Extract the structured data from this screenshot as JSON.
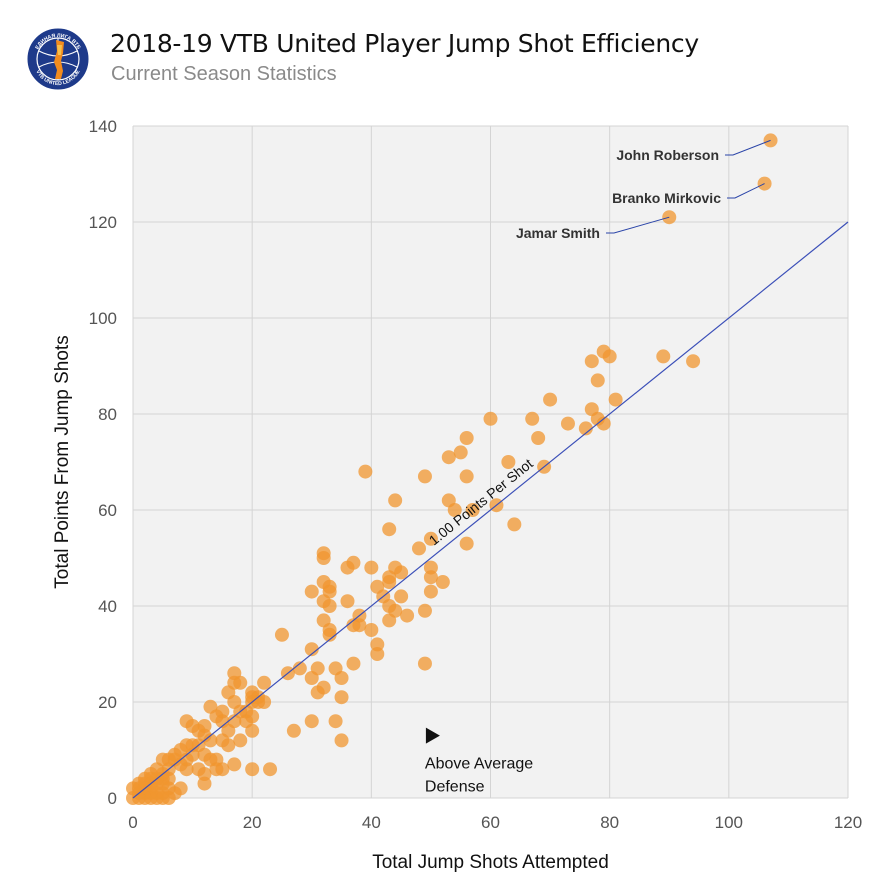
{
  "header": {
    "title": "2018-19 VTB United Player Jump Shot Efficiency",
    "subtitle": "Current Season Statistics",
    "logo": {
      "name": "vtb-united-league-logo",
      "top_text": "ЕДИНАЯ ЛИГА ВТБ",
      "bottom_text": "VTB UNITED LEAGUE",
      "colors": {
        "ring": "#1e3a8a",
        "trophy": "#f28c1e"
      }
    }
  },
  "colors": {
    "point": "#f0962f",
    "reference_line": "#3b4fb8",
    "plot_background": "#f2f2f2",
    "grid": "#d4d4d4",
    "callout_line": "#2a44a8"
  },
  "chart_data": {
    "type": "scatter",
    "title": "2018-19 VTB United Player Jump Shot Efficiency",
    "subtitle": "Current Season Statistics",
    "xlabel": "Total Jump Shots Attempted",
    "ylabel": "Total Points From Jump Shots",
    "xlim": [
      0,
      120
    ],
    "ylim": [
      0,
      140
    ],
    "xticks": [
      0,
      20,
      40,
      60,
      80,
      100,
      120
    ],
    "yticks": [
      0,
      20,
      40,
      60,
      80,
      100,
      120,
      140
    ],
    "xtick_labels": [
      "0",
      "20",
      "40",
      "60",
      "80",
      "100",
      "120"
    ],
    "ytick_labels": [
      "0",
      "20",
      "40",
      "60",
      "80",
      "100",
      "120",
      "140"
    ],
    "grid": true,
    "reference_line": {
      "label": "1.00 Points Per Shot",
      "slope": 1.0,
      "from": [
        0,
        0
      ],
      "to": [
        120,
        120
      ]
    },
    "annotation": {
      "line1": "Above Average",
      "line2": "Defense",
      "marker": "right-triangle",
      "x": 50,
      "y": 13
    },
    "callouts": [
      {
        "name": "John Roberson",
        "x": 107,
        "y": 137
      },
      {
        "name": "Branko Mirkovic",
        "x": 106,
        "y": 128
      },
      {
        "name": "Jamar Smith",
        "x": 90,
        "y": 121
      }
    ],
    "points": [
      [
        107,
        137
      ],
      [
        106,
        128
      ],
      [
        90,
        121
      ],
      [
        79,
        93
      ],
      [
        77,
        91
      ],
      [
        80,
        92
      ],
      [
        89,
        92
      ],
      [
        94,
        91
      ],
      [
        78,
        87
      ],
      [
        70,
        83
      ],
      [
        81,
        83
      ],
      [
        77,
        81
      ],
      [
        60,
        79
      ],
      [
        67,
        79
      ],
      [
        73,
        78
      ],
      [
        79,
        78
      ],
      [
        76,
        77
      ],
      [
        78,
        79
      ],
      [
        56,
        75
      ],
      [
        68,
        75
      ],
      [
        53,
        71
      ],
      [
        55,
        72
      ],
      [
        63,
        70
      ],
      [
        56,
        67
      ],
      [
        49,
        67
      ],
      [
        69,
        69
      ],
      [
        39,
        68
      ],
      [
        44,
        62
      ],
      [
        53,
        62
      ],
      [
        61,
        61
      ],
      [
        54,
        60
      ],
      [
        57,
        60
      ],
      [
        64,
        57
      ],
      [
        43,
        56
      ],
      [
        56,
        53
      ],
      [
        48,
        52
      ],
      [
        50,
        54
      ],
      [
        32,
        51
      ],
      [
        32,
        50
      ],
      [
        30,
        43
      ],
      [
        36,
        48
      ],
      [
        37,
        49
      ],
      [
        40,
        48
      ],
      [
        44,
        48
      ],
      [
        43,
        46
      ],
      [
        45,
        47
      ],
      [
        50,
        48
      ],
      [
        50,
        46
      ],
      [
        52,
        45
      ],
      [
        32,
        45
      ],
      [
        33,
        44
      ],
      [
        33,
        43
      ],
      [
        41,
        44
      ],
      [
        43,
        45
      ],
      [
        42,
        42
      ],
      [
        45,
        42
      ],
      [
        36,
        41
      ],
      [
        32,
        41
      ],
      [
        33,
        40
      ],
      [
        43,
        40
      ],
      [
        44,
        39
      ],
      [
        49,
        39
      ],
      [
        46,
        38
      ],
      [
        38,
        38
      ],
      [
        37,
        36
      ],
      [
        32,
        37
      ],
      [
        33,
        35
      ],
      [
        38,
        36
      ],
      [
        33,
        34
      ],
      [
        40,
        35
      ],
      [
        43,
        37
      ],
      [
        41,
        32
      ],
      [
        41,
        30
      ],
      [
        30,
        31
      ],
      [
        50,
        43
      ],
      [
        25,
        34
      ],
      [
        34,
        27
      ],
      [
        37,
        28
      ],
      [
        31,
        27
      ],
      [
        30,
        25
      ],
      [
        26,
        26
      ],
      [
        28,
        27
      ],
      [
        32,
        23
      ],
      [
        31,
        22
      ],
      [
        35,
        25
      ],
      [
        35,
        21
      ],
      [
        34,
        16
      ],
      [
        30,
        16
      ],
      [
        27,
        14
      ],
      [
        35,
        12
      ],
      [
        49,
        28
      ],
      [
        17,
        26
      ],
      [
        17,
        24
      ],
      [
        18,
        24
      ],
      [
        20,
        22
      ],
      [
        20,
        21
      ],
      [
        21,
        21
      ],
      [
        22,
        24
      ],
      [
        20,
        20
      ],
      [
        21,
        20
      ],
      [
        22,
        20
      ],
      [
        16,
        22
      ],
      [
        17,
        20
      ],
      [
        18,
        18
      ],
      [
        19,
        18
      ],
      [
        15,
        18
      ],
      [
        13,
        19
      ],
      [
        14,
        17
      ],
      [
        15,
        16
      ],
      [
        17,
        16
      ],
      [
        19,
        16
      ],
      [
        20,
        17
      ],
      [
        12,
        15
      ],
      [
        11,
        14
      ],
      [
        10,
        15
      ],
      [
        9,
        16
      ],
      [
        16,
        14
      ],
      [
        20,
        14
      ],
      [
        12,
        13
      ],
      [
        13,
        12
      ],
      [
        15,
        12
      ],
      [
        16,
        11
      ],
      [
        18,
        12
      ],
      [
        11,
        11
      ],
      [
        10,
        11
      ],
      [
        9,
        11
      ],
      [
        8,
        10
      ],
      [
        7,
        9
      ],
      [
        10,
        9
      ],
      [
        12,
        9
      ],
      [
        9,
        8
      ],
      [
        7,
        8
      ],
      [
        6,
        8
      ],
      [
        5,
        8
      ],
      [
        13,
        8
      ],
      [
        14,
        8
      ],
      [
        8,
        7
      ],
      [
        9,
        6
      ],
      [
        11,
        6
      ],
      [
        14,
        6
      ],
      [
        15,
        6
      ],
      [
        17,
        7
      ],
      [
        20,
        6
      ],
      [
        23,
        6
      ],
      [
        12,
        5
      ],
      [
        6,
        6
      ],
      [
        5,
        5
      ],
      [
        4,
        6
      ],
      [
        3,
        5
      ],
      [
        3,
        4
      ],
      [
        2,
        4
      ],
      [
        4,
        4
      ],
      [
        5,
        4
      ],
      [
        6,
        4
      ],
      [
        1,
        3
      ],
      [
        2,
        3
      ],
      [
        3,
        3
      ],
      [
        4,
        3
      ],
      [
        5,
        3
      ],
      [
        12,
        3
      ],
      [
        1,
        2
      ],
      [
        2,
        2
      ],
      [
        3,
        2
      ],
      [
        6,
        2
      ],
      [
        8,
        2
      ],
      [
        1,
        1
      ],
      [
        2,
        1
      ],
      [
        3,
        1
      ],
      [
        4,
        1
      ],
      [
        5,
        1
      ],
      [
        7,
        1
      ],
      [
        1,
        0
      ],
      [
        2,
        0
      ],
      [
        3,
        0
      ],
      [
        4,
        0
      ],
      [
        5,
        0
      ],
      [
        6,
        0
      ],
      [
        0,
        0
      ],
      [
        0,
        2
      ]
    ]
  }
}
